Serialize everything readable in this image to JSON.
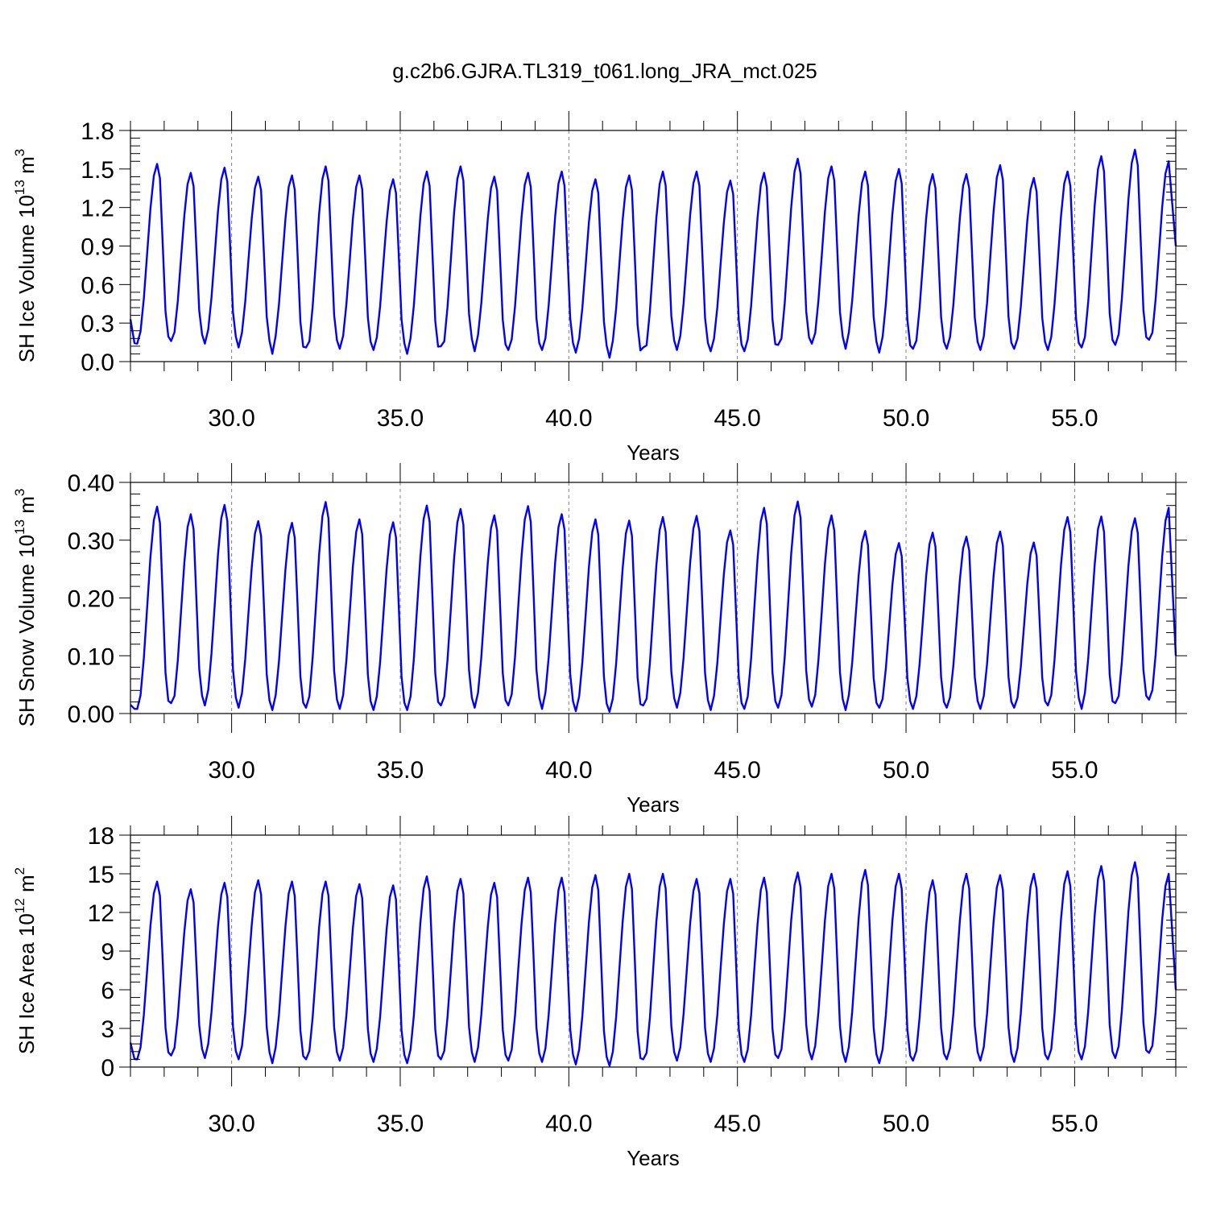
{
  "title": "g.c2b6.GJRA.TL319_t061.long_JRA_mct.025",
  "chart_data": [
    {
      "type": "line",
      "xlabel": "Years",
      "ylabel": "SH Ice Volume 10",
      "ylabel_sup": "13",
      "ylabel_unit": " m",
      "ylabel_unit_sup": "3",
      "xlim": [
        27.0,
        58.0
      ],
      "ylim": [
        0.0,
        1.8
      ],
      "xticks": [
        30,
        35,
        40,
        45,
        50,
        55
      ],
      "xtick_labels": [
        "30.0",
        "35.0",
        "40.0",
        "45.0",
        "50.0",
        "55.0"
      ],
      "yticks": [
        0.0,
        0.3,
        0.6,
        0.9,
        1.2,
        1.5,
        1.8
      ],
      "ytick_labels": [
        "0.0",
        "0.3",
        "0.6",
        "0.9",
        "1.2",
        "1.5",
        "1.8"
      ],
      "grid": "dashed vertical lines at major x ticks",
      "line_color": "#0000ff",
      "series": [
        {
          "peak_years": [
            27.79,
            28.79,
            29.79,
            30.79,
            31.79,
            32.79,
            33.79,
            34.79,
            35.79,
            36.79,
            37.79,
            38.79,
            39.79,
            40.79,
            41.79,
            42.79,
            43.79,
            44.79,
            45.79,
            46.79,
            47.79,
            48.79,
            49.79,
            50.79,
            51.79,
            52.79,
            53.79,
            54.79,
            55.79,
            56.79,
            57.79
          ],
          "maxima": [
            1.54,
            1.47,
            1.51,
            1.44,
            1.45,
            1.52,
            1.45,
            1.42,
            1.48,
            1.52,
            1.44,
            1.47,
            1.48,
            1.42,
            1.45,
            1.48,
            1.48,
            1.41,
            1.47,
            1.58,
            1.52,
            1.48,
            1.5,
            1.46,
            1.46,
            1.53,
            1.43,
            1.48,
            1.6,
            1.65,
            1.56
          ],
          "minima": [
            0.14,
            0.16,
            0.14,
            0.11,
            0.06,
            0.11,
            0.1,
            0.09,
            0.06,
            0.12,
            0.08,
            0.09,
            0.09,
            0.07,
            0.03,
            0.11,
            0.09,
            0.08,
            0.08,
            0.13,
            0.14,
            0.1,
            0.07,
            0.1,
            0.1,
            0.09,
            0.1,
            0.09,
            0.11,
            0.13,
            0.17
          ],
          "start_value": 0.33,
          "end_value": 0.9
        }
      ]
    },
    {
      "type": "line",
      "xlabel": "Years",
      "ylabel": "SH Snow Volume 10",
      "ylabel_sup": "13",
      "ylabel_unit": " m",
      "ylabel_unit_sup": "3",
      "xlim": [
        27.0,
        58.0
      ],
      "ylim": [
        0.0,
        0.4
      ],
      "xticks": [
        30,
        35,
        40,
        45,
        50,
        55
      ],
      "xtick_labels": [
        "30.0",
        "35.0",
        "40.0",
        "45.0",
        "50.0",
        "55.0"
      ],
      "yticks": [
        0.0,
        0.1,
        0.2,
        0.3,
        0.4
      ],
      "ytick_labels": [
        "0.00",
        "0.10",
        "0.20",
        "0.30",
        "0.40"
      ],
      "grid": "dashed vertical lines at major x ticks",
      "line_color": "#0000ff",
      "series": [
        {
          "peak_years": [
            27.79,
            28.79,
            29.79,
            30.79,
            31.79,
            32.79,
            33.79,
            34.79,
            35.79,
            36.79,
            37.79,
            38.79,
            39.79,
            40.79,
            41.79,
            42.79,
            43.79,
            44.79,
            45.79,
            46.79,
            47.79,
            48.79,
            49.79,
            50.79,
            51.79,
            52.79,
            53.79,
            54.79,
            55.79,
            56.79,
            57.79
          ],
          "maxima": [
            0.358,
            0.345,
            0.361,
            0.333,
            0.33,
            0.366,
            0.336,
            0.331,
            0.36,
            0.354,
            0.343,
            0.359,
            0.345,
            0.336,
            0.334,
            0.34,
            0.342,
            0.317,
            0.356,
            0.367,
            0.343,
            0.316,
            0.295,
            0.313,
            0.306,
            0.315,
            0.296,
            0.34,
            0.341,
            0.338,
            0.356
          ],
          "minima": [
            0.008,
            0.018,
            0.014,
            0.01,
            0.006,
            0.01,
            0.008,
            0.006,
            0.006,
            0.014,
            0.01,
            0.014,
            0.008,
            0.004,
            0.003,
            0.014,
            0.01,
            0.006,
            0.008,
            0.01,
            0.012,
            0.006,
            0.01,
            0.008,
            0.01,
            0.008,
            0.01,
            0.014,
            0.008,
            0.018,
            0.024
          ],
          "start_value": 0.015,
          "end_value": 0.1
        }
      ]
    },
    {
      "type": "line",
      "xlabel": "Years",
      "ylabel": "SH Ice Area 10",
      "ylabel_sup": "12",
      "ylabel_unit": " m",
      "ylabel_unit_sup": "2",
      "xlim": [
        27.0,
        58.0
      ],
      "ylim": [
        0,
        18
      ],
      "xticks": [
        30,
        35,
        40,
        45,
        50,
        55
      ],
      "xtick_labels": [
        "30.0",
        "35.0",
        "40.0",
        "45.0",
        "50.0",
        "55.0"
      ],
      "yticks": [
        0,
        3,
        6,
        9,
        12,
        15,
        18
      ],
      "ytick_labels": [
        "0",
        "3",
        "6",
        "9",
        "12",
        "15",
        "18"
      ],
      "grid": "dashed vertical lines at major x ticks",
      "line_color": "#0000ff",
      "series": [
        {
          "peak_years": [
            27.79,
            28.79,
            29.79,
            30.79,
            31.79,
            32.79,
            33.79,
            34.79,
            35.79,
            36.79,
            37.79,
            38.79,
            39.79,
            40.79,
            41.79,
            42.79,
            43.79,
            44.79,
            45.79,
            46.79,
            47.79,
            48.79,
            49.79,
            50.79,
            51.79,
            52.79,
            53.79,
            54.79,
            55.79,
            56.79,
            57.79
          ],
          "maxima": [
            14.4,
            13.8,
            14.3,
            14.5,
            14.4,
            14.4,
            14.2,
            14.1,
            14.8,
            14.6,
            14.3,
            14.7,
            14.7,
            14.9,
            15.0,
            15.0,
            14.6,
            14.6,
            14.7,
            15.1,
            15.0,
            15.3,
            15.0,
            14.5,
            15.0,
            14.9,
            15.0,
            15.2,
            15.6,
            15.9,
            15.0
          ],
          "minima": [
            0.6,
            0.9,
            0.7,
            0.6,
            0.3,
            0.6,
            0.5,
            0.4,
            0.3,
            0.6,
            0.4,
            0.5,
            0.4,
            0.2,
            0.1,
            0.6,
            0.5,
            0.4,
            0.4,
            0.7,
            0.6,
            0.4,
            0.3,
            0.5,
            0.6,
            0.5,
            0.4,
            0.6,
            0.6,
            0.7,
            1.1
          ],
          "start_value": 1.9,
          "end_value": 6.0
        }
      ]
    }
  ]
}
